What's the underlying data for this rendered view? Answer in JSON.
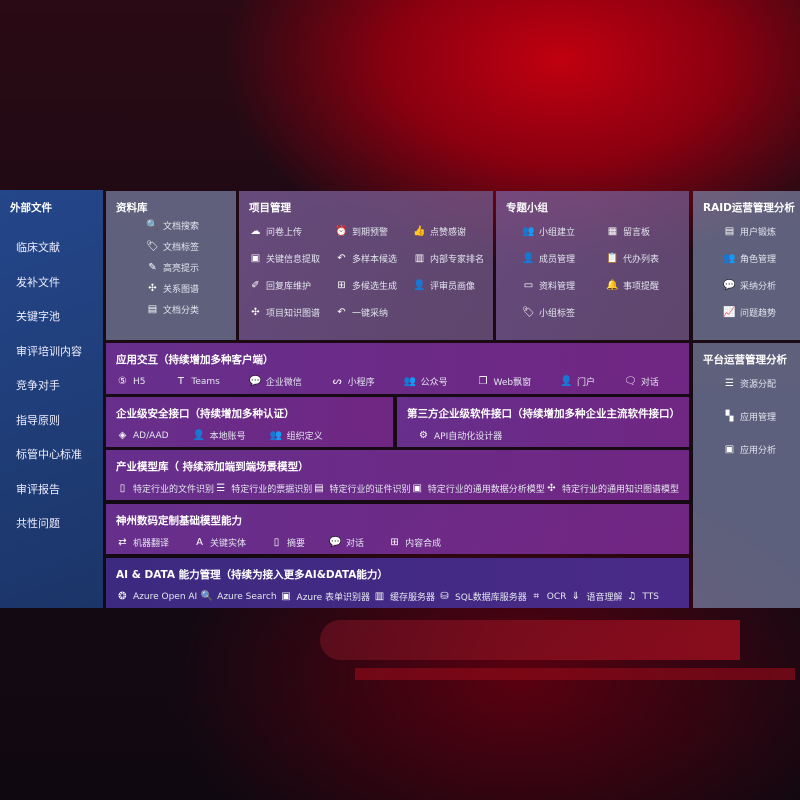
{
  "external": {
    "title": "外部文件",
    "items": [
      "临床文献",
      "发补文件",
      "关键字池",
      "审评培训内容",
      "竞争对手",
      "指导原则",
      "标管中心标准",
      "审评报告",
      "共性问题"
    ]
  },
  "library": {
    "title": "资料库",
    "items": [
      {
        "icon": "document-search-icon",
        "g": "🔍",
        "label": "文档搜索"
      },
      {
        "icon": "tag-icon",
        "g": "🏷",
        "label": "文档标签"
      },
      {
        "icon": "pen-icon",
        "g": "✎",
        "label": "高亮提示"
      },
      {
        "icon": "graph-icon",
        "g": "✣",
        "label": "关系图谱"
      },
      {
        "icon": "document-stack-icon",
        "g": "▤",
        "label": "文档分类"
      }
    ]
  },
  "project": {
    "title": "项目管理",
    "items": [
      {
        "icon": "cloud-upload-icon",
        "g": "☁",
        "label": "问卷上传"
      },
      {
        "icon": "alarm-icon",
        "g": "⏰",
        "label": "到期预警"
      },
      {
        "icon": "thumbs-up-icon",
        "g": "👍",
        "label": "点赞感谢"
      },
      {
        "icon": "window-icon",
        "g": "▣",
        "label": "关键信息提取"
      },
      {
        "icon": "reply-icon",
        "g": "↶",
        "label": "多样本候选"
      },
      {
        "icon": "ranking-icon",
        "g": "▥",
        "label": "内部专家排名"
      },
      {
        "icon": "edit-icon",
        "g": "✐",
        "label": "回复库维护"
      },
      {
        "icon": "puzzle-icon",
        "g": "⊞",
        "label": "多候选生成"
      },
      {
        "icon": "user-icon",
        "g": "👤",
        "label": "评审员画像"
      },
      {
        "icon": "knowledge-graph-icon",
        "g": "✣",
        "label": "项目知识图谱"
      },
      {
        "icon": "reply-icon",
        "g": "↶",
        "label": "一键采纳"
      }
    ]
  },
  "group": {
    "title": "专题小组",
    "items": [
      {
        "icon": "group-icon",
        "g": "👥",
        "label": "小组建立"
      },
      {
        "icon": "bbs-icon",
        "g": "▦",
        "label": "留言板"
      },
      {
        "icon": "add-user-icon",
        "g": "👤",
        "label": "成员管理"
      },
      {
        "icon": "clipboard-icon",
        "g": "📋",
        "label": "代办列表"
      },
      {
        "icon": "folder-icon",
        "g": "▭",
        "label": "资料管理"
      },
      {
        "icon": "bell-icon",
        "g": "🔔",
        "label": "事项提醒"
      },
      {
        "icon": "tag-icon",
        "g": "🏷",
        "label": "小组标签"
      }
    ]
  },
  "raid": {
    "title": "RAID运营管理分析",
    "items": [
      {
        "icon": "id-card-icon",
        "g": "▤",
        "label": "用户锻炼"
      },
      {
        "icon": "users-icon",
        "g": "👥",
        "label": "角色管理"
      },
      {
        "icon": "qa-icon",
        "g": "💬",
        "label": "采纳分析"
      },
      {
        "icon": "trend-chart-icon",
        "g": "📈",
        "label": "问题趋势"
      }
    ]
  },
  "platform": {
    "title": "平台运营管理分析",
    "items": [
      {
        "icon": "list-icon",
        "g": "☰",
        "label": "资源分配"
      },
      {
        "icon": "apps-icon",
        "g": "▚",
        "label": "应用管理"
      },
      {
        "icon": "analytics-icon",
        "g": "▣",
        "label": "应用分析"
      }
    ]
  },
  "app": {
    "title": "应用交互（持续增加多种客户端）",
    "items": [
      {
        "icon": "html5-icon",
        "g": "⑤",
        "label": "H5"
      },
      {
        "icon": "teams-icon",
        "g": "T",
        "label": "Teams"
      },
      {
        "icon": "wechat-icon",
        "g": "💬",
        "label": "企业微信"
      },
      {
        "icon": "mini-program-icon",
        "g": "ᔕ",
        "label": "小程序"
      },
      {
        "icon": "public-account-icon",
        "g": "👥",
        "label": "公众号"
      },
      {
        "icon": "web-window-icon",
        "g": "❐",
        "label": "Web飘窗"
      },
      {
        "icon": "portal-icon",
        "g": "👤",
        "label": "门户"
      },
      {
        "icon": "dialog-icon",
        "g": "🗨",
        "label": "对话"
      }
    ]
  },
  "security": {
    "title": "企业级安全接口（持续增加多种认证）",
    "items": [
      {
        "icon": "azure-ad-icon",
        "g": "◈",
        "label": "AD/AAD"
      },
      {
        "icon": "local-account-icon",
        "g": "👤",
        "label": "本地账号"
      },
      {
        "icon": "organization-icon",
        "g": "👥",
        "label": "组织定义"
      }
    ]
  },
  "thirdparty": {
    "title": "第三方企业级软件接口（持续增加多种企业主流软件接口）",
    "items": [
      {
        "icon": "gear-icon",
        "g": "⚙",
        "label": "API自动化设计器"
      }
    ]
  },
  "industry": {
    "title": "产业模型库（ 持续添加端到端场景模型）",
    "items": [
      {
        "icon": "file-icon",
        "g": "▯",
        "label": "特定行业的文件识别"
      },
      {
        "icon": "receipt-icon",
        "g": "☰",
        "label": "特定行业的票据识别"
      },
      {
        "icon": "id-card-icon",
        "g": "▤",
        "label": "特定行业的证件识别"
      },
      {
        "icon": "data-analysis-icon",
        "g": "▣",
        "label": "特定行业的通用数据分析模型"
      },
      {
        "icon": "knowledge-graph-icon",
        "g": "✣",
        "label": "特定行业的通用知识图谱模型"
      }
    ]
  },
  "base": {
    "title": "神州数码定制基础模型能力",
    "items": [
      {
        "icon": "translate-icon",
        "g": "⇄",
        "label": "机器翻译"
      },
      {
        "icon": "entity-icon",
        "g": "A",
        "label": "关键实体"
      },
      {
        "icon": "summary-icon",
        "g": "▯",
        "label": "摘要"
      },
      {
        "icon": "chat-icon",
        "g": "💬",
        "label": "对话"
      },
      {
        "icon": "content-icon",
        "g": "⊞",
        "label": "内容合成"
      }
    ]
  },
  "ai": {
    "title": "AI & DATA 能力管理（持续为接入更多AI&DATA能力）",
    "items": [
      {
        "icon": "openai-icon",
        "g": "❂",
        "label": "Azure Open AI"
      },
      {
        "icon": "search-doc-icon",
        "g": "🔍",
        "label": "Azure Search"
      },
      {
        "icon": "form-recognizer-icon",
        "g": "▣",
        "label": "Azure 表单识别器"
      },
      {
        "icon": "cache-server-icon",
        "g": "▥",
        "label": "缓存服务器"
      },
      {
        "icon": "database-icon",
        "g": "⛁",
        "label": "SQL数据库服务器"
      },
      {
        "icon": "ocr-icon",
        "g": "⌗",
        "label": "OCR"
      },
      {
        "icon": "speech-icon",
        "g": "⇓",
        "label": "语音理解"
      },
      {
        "icon": "tts-icon",
        "g": "♫",
        "label": "TTS"
      }
    ]
  }
}
